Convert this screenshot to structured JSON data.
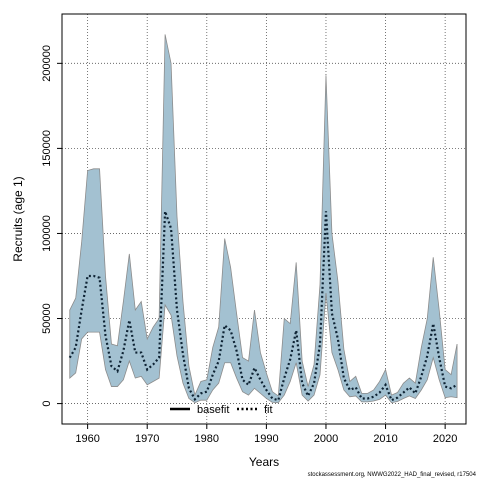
{
  "chart_data": {
    "type": "line",
    "xlabel": "Years",
    "ylabel": "Recruits (age 1)",
    "xlim": [
      1955.7,
      2023.5
    ],
    "ylim": [
      -12000,
      229000
    ],
    "x_ticks": [
      1960,
      1970,
      1980,
      1990,
      2000,
      2010,
      2020
    ],
    "y_ticks": [
      0,
      50000,
      100000,
      150000,
      200000
    ],
    "grid": true,
    "legend_position": "bottom-center",
    "legend": [
      {
        "name": "basefit",
        "style": "solid"
      },
      {
        "name": "fit",
        "style": "dotted"
      }
    ],
    "band_color": "#a3c1d1",
    "band_edge_color": "#8c8c8c",
    "line_color": "#0d2233",
    "x": [
      1957,
      1958,
      1959,
      1960,
      1961,
      1962,
      1963,
      1964,
      1965,
      1966,
      1967,
      1968,
      1969,
      1970,
      1971,
      1972,
      1973,
      1974,
      1975,
      1976,
      1977,
      1978,
      1979,
      1980,
      1981,
      1982,
      1983,
      1984,
      1985,
      1986,
      1987,
      1988,
      1989,
      1990,
      1991,
      1992,
      1993,
      1994,
      1995,
      1996,
      1997,
      1998,
      1999,
      2000,
      2001,
      2002,
      2003,
      2004,
      2005,
      2006,
      2007,
      2008,
      2009,
      2010,
      2011,
      2012,
      2013,
      2014,
      2015,
      2016,
      2017,
      2018,
      2019,
      2020,
      2021,
      2022
    ],
    "series": [
      {
        "name": "fit",
        "values": [
          27000,
          33000,
          55000,
          75000,
          75000,
          74000,
          40000,
          22000,
          19000,
          31000,
          49000,
          30000,
          30000,
          20000,
          23000,
          27000,
          113000,
          103000,
          55000,
          29000,
          9000,
          2500,
          6000,
          7000,
          17000,
          25000,
          46000,
          43000,
          31000,
          14000,
          11000,
          21000,
          14000,
          8000,
          3000,
          2000,
          15000,
          26000,
          43000,
          12000,
          4500,
          12000,
          35000,
          113000,
          53000,
          38000,
          15000,
          8000,
          9500,
          3000,
          3000,
          4000,
          6500,
          11000,
          2000,
          3500,
          6500,
          9500,
          6000,
          16000,
          28000,
          47000,
          27000,
          10000,
          9000,
          11000
        ],
        "lower": [
          15000,
          18000,
          38000,
          42000,
          42000,
          42000,
          20000,
          10000,
          10000,
          14000,
          25000,
          15000,
          16000,
          11000,
          13000,
          15000,
          58000,
          52000,
          28000,
          12000,
          3000,
          500,
          2000,
          2000,
          8000,
          12000,
          24000,
          24000,
          15000,
          7000,
          5000,
          9000,
          6000,
          3000,
          700,
          500,
          5000,
          13000,
          24000,
          5000,
          1500,
          5000,
          17000,
          65000,
          30000,
          20000,
          8000,
          4000,
          4500,
          1000,
          1000,
          1500,
          2500,
          5000,
          500,
          1200,
          3000,
          4500,
          3000,
          8000,
          14000,
          27000,
          14000,
          3500,
          4000,
          3500
        ],
        "upper": [
          55000,
          62000,
          95000,
          137000,
          138000,
          138000,
          75000,
          35000,
          34000,
          60000,
          88000,
          55000,
          60000,
          38000,
          45000,
          50000,
          217000,
          200000,
          110000,
          60000,
          22000,
          5000,
          13000,
          14000,
          33000,
          45000,
          97000,
          80000,
          53000,
          27000,
          25000,
          55000,
          30000,
          18000,
          7000,
          4500,
          50000,
          47000,
          83000,
          25000,
          10000,
          23000,
          70000,
          193000,
          100000,
          72000,
          32000,
          13000,
          16000,
          6000,
          6000,
          8000,
          13000,
          20000,
          5000,
          6500,
          12000,
          15000,
          12000,
          33000,
          50000,
          86000,
          55000,
          20000,
          17000,
          35000
        ]
      }
    ],
    "footer": "stockassessment.org, NWWG2022_HAD_final_revised, r17504"
  }
}
